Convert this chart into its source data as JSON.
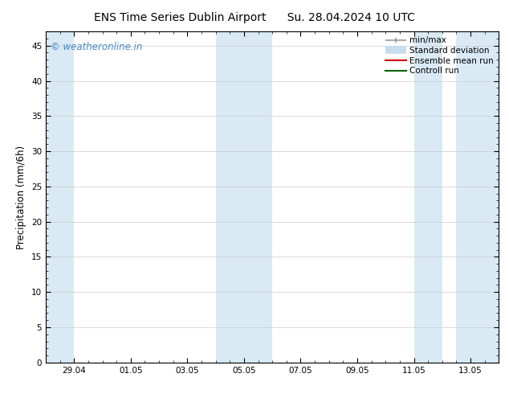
{
  "title_left": "ENS Time Series Dublin Airport",
  "title_right": "Su. 28.04.2024 10 UTC",
  "ylabel": "Precipitation (mm/6h)",
  "ylim": [
    0,
    47
  ],
  "yticks": [
    0,
    5,
    10,
    15,
    20,
    25,
    30,
    35,
    40,
    45
  ],
  "xlim": [
    0,
    16
  ],
  "xtick_positions": [
    1,
    3,
    5,
    7,
    9,
    11,
    13,
    15
  ],
  "xtick_labels": [
    "29.04",
    "01.05",
    "03.05",
    "05.05",
    "07.05",
    "09.05",
    "11.05",
    "13.05"
  ],
  "shaded_bands": [
    [
      0.0,
      1.0
    ],
    [
      6.0,
      8.0
    ],
    [
      13.0,
      14.0
    ],
    [
      14.5,
      16.0
    ]
  ],
  "shaded_color": "#d9eaf5",
  "watermark": "© weatheronline.in",
  "watermark_color": "#4488cc",
  "legend_entries": [
    {
      "label": "min/max",
      "color": "#999999",
      "lw": 1.2
    },
    {
      "label": "Standard deviation",
      "color": "#c8ddf0",
      "lw": 7
    },
    {
      "label": "Ensemble mean run",
      "color": "#cc0000",
      "lw": 1.5
    },
    {
      "label": "Controll run",
      "color": "#006600",
      "lw": 1.5
    }
  ],
  "title_fontsize": 10,
  "tick_fontsize": 7.5,
  "ylabel_fontsize": 8.5,
  "legend_fontsize": 7.5,
  "watermark_fontsize": 8.5,
  "background_color": "#ffffff",
  "plot_bg_color": "#ffffff",
  "grid_color": "#cccccc",
  "spine_color": "#000000"
}
